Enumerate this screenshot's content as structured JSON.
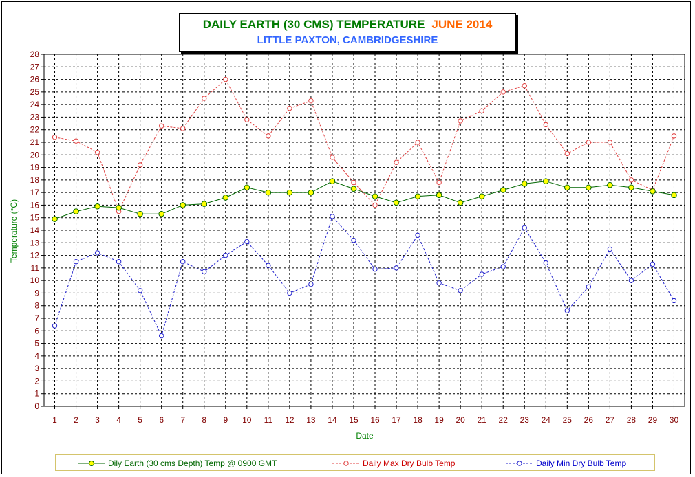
{
  "title": {
    "main": "DAILY EARTH (30 CMS) TEMPERATURE",
    "month": "JUNE 2014",
    "subtitle": "LITTLE PAXTON, CAMBRIDGESHIRE"
  },
  "colors": {
    "earth": "#006600",
    "earth_marker": "#ffff00",
    "max": "#e04040",
    "min": "#2020cc",
    "axis_tick_labels": "#800000",
    "axis_title": "#008000",
    "title_green": "#007a00",
    "title_orange": "#ff6600",
    "subtitle_blue": "#3366ff"
  },
  "chart_data": {
    "type": "line",
    "title": "DAILY EARTH (30 CMS) TEMPERATURE JUNE 2014",
    "subtitle": "LITTLE PAXTON, CAMBRIDGESHIRE",
    "xlabel": "Date",
    "ylabel": "Temperature (°C)",
    "x": [
      1,
      2,
      3,
      4,
      5,
      6,
      7,
      8,
      9,
      10,
      11,
      12,
      13,
      14,
      15,
      16,
      17,
      18,
      19,
      20,
      21,
      22,
      23,
      24,
      25,
      26,
      27,
      28,
      29,
      30
    ],
    "ylim": [
      0,
      28
    ],
    "ytick_step": 1,
    "grid": true,
    "legend_position": "bottom",
    "series": [
      {
        "name": "Dily Earth (30 cms Depth) Temp @ 0900 GMT",
        "style": "solid",
        "values": [
          14.9,
          15.5,
          15.9,
          15.8,
          15.3,
          15.3,
          16.0,
          16.1,
          16.6,
          17.4,
          17.0,
          17.0,
          17.0,
          17.9,
          17.3,
          16.7,
          16.2,
          16.7,
          16.8,
          16.2,
          16.7,
          17.2,
          17.7,
          17.9,
          17.4,
          17.4,
          17.6,
          17.4,
          17.1,
          16.8
        ]
      },
      {
        "name": "Daily Max Dry Bulb Temp",
        "style": "dashed",
        "values": [
          21.4,
          21.1,
          20.2,
          15.5,
          19.2,
          22.3,
          22.1,
          24.5,
          26.0,
          22.8,
          21.5,
          23.7,
          24.3,
          19.8,
          17.8,
          16.0,
          19.4,
          21.0,
          17.8,
          22.7,
          23.5,
          25.0,
          25.5,
          22.4,
          20.1,
          21.0,
          21.0,
          18.0,
          17.2,
          21.5
        ]
      },
      {
        "name": "Daily Min Dry Bulb Temp",
        "style": "dashed",
        "values": [
          6.4,
          11.5,
          12.2,
          11.5,
          9.2,
          5.6,
          11.5,
          10.7,
          12.0,
          13.1,
          11.2,
          9.0,
          9.7,
          15.1,
          13.2,
          10.9,
          11.0,
          13.6,
          9.8,
          9.2,
          10.5,
          11.1,
          14.2,
          11.4,
          7.6,
          9.5,
          12.5,
          10.0,
          11.3,
          8.4
        ]
      }
    ]
  }
}
